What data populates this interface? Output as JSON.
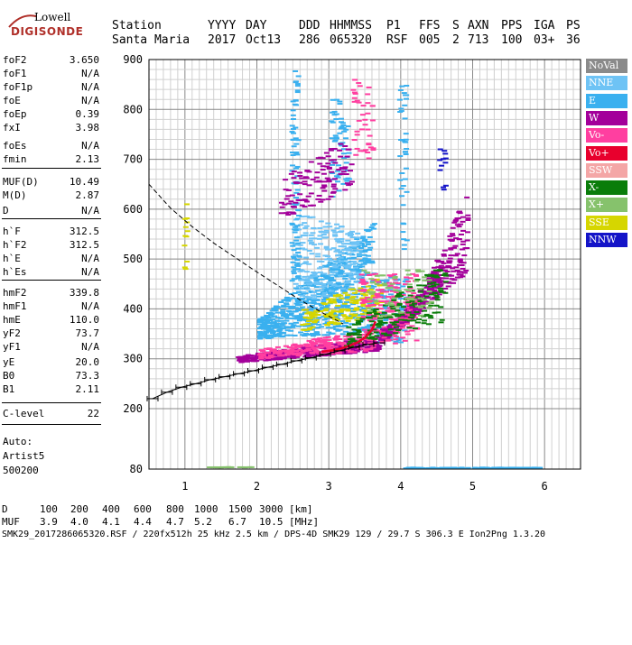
{
  "logo": {
    "line1": "Lowell",
    "line2": "DIGISONDE"
  },
  "header": {
    "labels": [
      "Station",
      "YYYY",
      "DAY",
      "DDD",
      "HHMMSS",
      "P1",
      "FFS",
      "S",
      "AXN",
      "PPS",
      "IGA",
      "PS"
    ],
    "values": [
      "Santa Maria",
      "2017",
      "Oct13",
      "286",
      "065320",
      "RSF",
      "005",
      "2",
      "713",
      "100",
      "03+",
      "36"
    ]
  },
  "params": [
    {
      "k": "foF2",
      "v": "3.650"
    },
    {
      "k": "foF1",
      "v": "N/A"
    },
    {
      "k": "foF1p",
      "v": "N/A"
    },
    {
      "k": "foE",
      "v": "N/A"
    },
    {
      "k": "foEp",
      "v": "0.39"
    },
    {
      "k": "fxI",
      "v": "3.98"
    },
    {
      "k": "foEs",
      "v": "N/A"
    },
    {
      "k": "fmin",
      "v": "2.13"
    },
    {
      "k": "MUF(D)",
      "v": "10.49"
    },
    {
      "k": "M(D)",
      "v": "2.87"
    },
    {
      "k": "D",
      "v": "N/A"
    },
    {
      "k": "h`F",
      "v": "312.5"
    },
    {
      "k": "h`F2",
      "v": "312.5"
    },
    {
      "k": "h`E",
      "v": "N/A"
    },
    {
      "k": "h`Es",
      "v": "N/A"
    },
    {
      "k": "hmF2",
      "v": "339.8"
    },
    {
      "k": "hmF1",
      "v": "N/A"
    },
    {
      "k": "hmE",
      "v": "110.0"
    },
    {
      "k": "yF2",
      "v": "73.7"
    },
    {
      "k": "yF1",
      "v": "N/A"
    },
    {
      "k": "yE",
      "v": "20.0"
    },
    {
      "k": "B0",
      "v": "73.3"
    },
    {
      "k": "B1",
      "v": "2.11"
    },
    {
      "k": "C-level",
      "v": "22"
    }
  ],
  "auto": [
    "Auto:",
    "Artist5",
    "500200"
  ],
  "legend": [
    {
      "label": "NoVal",
      "color": "#8a8a8a"
    },
    {
      "label": "NNE",
      "color": "#6ec3f5"
    },
    {
      "label": "E",
      "color": "#3ab0ef"
    },
    {
      "label": "W",
      "color": "#a3009a"
    },
    {
      "label": "Vo-",
      "color": "#ff3fa0"
    },
    {
      "label": "Vo+",
      "color": "#e8002d"
    },
    {
      "label": "SSW",
      "color": "#f4a6a6"
    },
    {
      "label": "X-",
      "color": "#0a7d0a"
    },
    {
      "label": "X+",
      "color": "#86c26c"
    },
    {
      "label": "SSE",
      "color": "#d6d600"
    },
    {
      "label": "NNW",
      "color": "#1414c8"
    }
  ],
  "footer": {
    "d_label": "D",
    "d_values": [
      "100",
      "200",
      "400",
      "600",
      "800",
      "1000",
      "1500",
      "3000",
      "[km]"
    ],
    "muf_label": "MUF",
    "muf_values": [
      "3.9",
      "4.0",
      "4.1",
      "4.4",
      "4.7",
      "5.2",
      "6.7",
      "10.5",
      "[MHz]"
    ],
    "file_line": "SMK29_2017286065320.RSF / 220fx512h 25 kHz 2.5 km / DPS-4D SMK29 129 / 29.7 S 306.3 E Ion2Png 1.3.20"
  },
  "chart_data": {
    "type": "scatter",
    "title": "",
    "xlabel": "",
    "ylabel": "",
    "xlim": [
      0.5,
      6.5
    ],
    "ylim": [
      80,
      900
    ],
    "x_ticks": [
      1,
      2,
      3,
      4,
      5,
      6
    ],
    "y_ticks": [
      200,
      300,
      400,
      500,
      600,
      700,
      800,
      900
    ],
    "y_bottom_label": 80,
    "grid": true,
    "legend_position": "right",
    "profile_with_errorbars": {
      "x": [
        0.55,
        0.75,
        0.95,
        1.15,
        1.35,
        1.55,
        1.75,
        1.95,
        2.15,
        2.35,
        2.55,
        2.75,
        2.95,
        3.15,
        3.35,
        3.55,
        3.7
      ],
      "y": [
        220,
        233,
        243,
        250,
        258,
        264,
        270,
        276,
        283,
        289,
        296,
        302,
        309,
        316,
        323,
        329,
        332
      ]
    },
    "ordinary_trace": {
      "x": [
        2.9,
        3.1,
        3.25,
        3.4,
        3.5,
        3.6,
        3.65
      ],
      "y": [
        314,
        318,
        324,
        333,
        342,
        358,
        375
      ]
    },
    "mirror_trace": {
      "x": [
        0.5,
        0.8,
        1.1,
        1.4,
        1.7,
        2.0,
        2.3,
        2.6,
        2.9,
        3.2
      ],
      "y": [
        650,
        602,
        565,
        532,
        503,
        474,
        446,
        418,
        393,
        370
      ]
    }
  }
}
